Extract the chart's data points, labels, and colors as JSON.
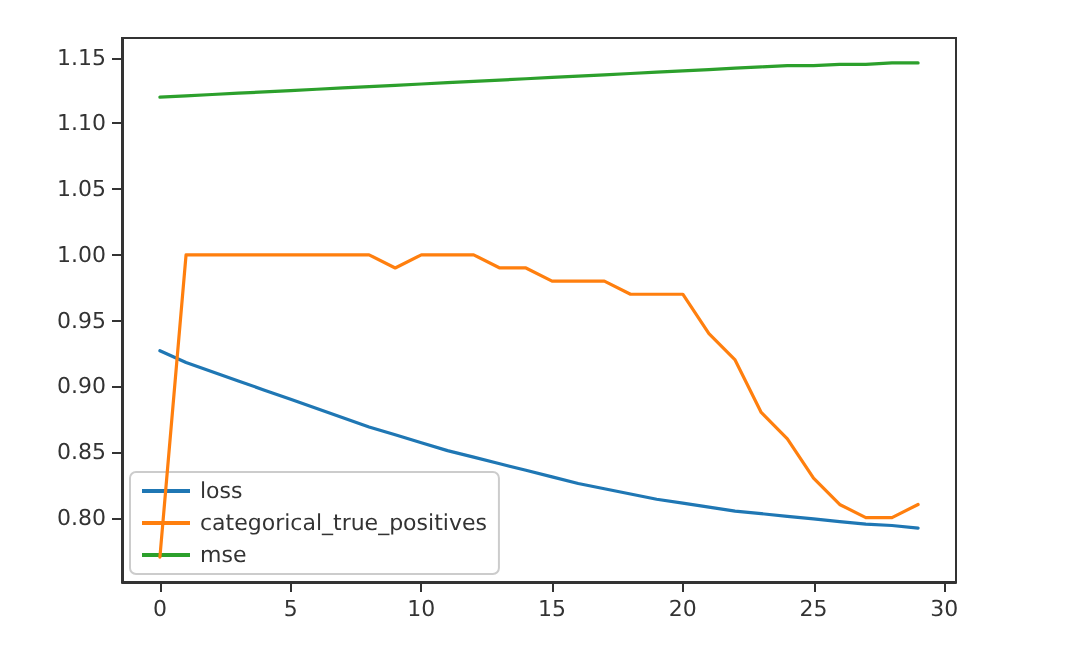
{
  "chart_data": {
    "type": "line",
    "x": [
      0,
      1,
      2,
      3,
      4,
      5,
      6,
      7,
      8,
      9,
      10,
      11,
      12,
      13,
      14,
      15,
      16,
      17,
      18,
      19,
      20,
      21,
      22,
      23,
      24,
      25,
      26,
      27,
      28,
      29
    ],
    "series": [
      {
        "name": "loss",
        "color": "#1f77b4",
        "values": [
          0.927,
          0.918,
          0.911,
          0.904,
          0.897,
          0.89,
          0.883,
          0.876,
          0.869,
          0.863,
          0.857,
          0.851,
          0.846,
          0.841,
          0.836,
          0.831,
          0.826,
          0.822,
          0.818,
          0.814,
          0.811,
          0.808,
          0.805,
          0.803,
          0.801,
          0.799,
          0.797,
          0.795,
          0.794,
          0.792
        ]
      },
      {
        "name": "categorical_true_positives",
        "color": "#ff7f0e",
        "values": [
          0.77,
          1.0,
          1.0,
          1.0,
          1.0,
          1.0,
          1.0,
          1.0,
          1.0,
          0.99,
          1.0,
          1.0,
          1.0,
          0.99,
          0.99,
          0.98,
          0.98,
          0.98,
          0.97,
          0.97,
          0.97,
          0.94,
          0.92,
          0.88,
          0.86,
          0.83,
          0.81,
          0.8,
          0.8,
          0.81
        ]
      },
      {
        "name": "mse",
        "color": "#2ca02c",
        "values": [
          1.12,
          1.121,
          1.122,
          1.123,
          1.124,
          1.125,
          1.126,
          1.127,
          1.128,
          1.129,
          1.13,
          1.131,
          1.132,
          1.133,
          1.134,
          1.135,
          1.136,
          1.137,
          1.138,
          1.139,
          1.14,
          1.141,
          1.142,
          1.143,
          1.144,
          1.144,
          1.145,
          1.145,
          1.146,
          1.146
        ]
      }
    ],
    "xlim": [
      -1.45,
      30.45
    ],
    "xticks": [
      0,
      5,
      10,
      15,
      20,
      25,
      30
    ],
    "ylim": [
      0.751,
      1.165
    ],
    "yticks": [
      {
        "value": 0.8,
        "label": "0.80"
      },
      {
        "value": 0.85,
        "label": "0.85"
      },
      {
        "value": 0.9,
        "label": "0.90"
      },
      {
        "value": 0.95,
        "label": "0.95"
      },
      {
        "value": 1.0,
        "label": "1.00"
      },
      {
        "value": 1.05,
        "label": "1.05"
      },
      {
        "value": 1.1,
        "label": "1.10"
      },
      {
        "value": 1.15,
        "label": "1.15"
      }
    ],
    "grid": false,
    "legend": "bottom left",
    "marker": "none",
    "line_style": "solid"
  }
}
